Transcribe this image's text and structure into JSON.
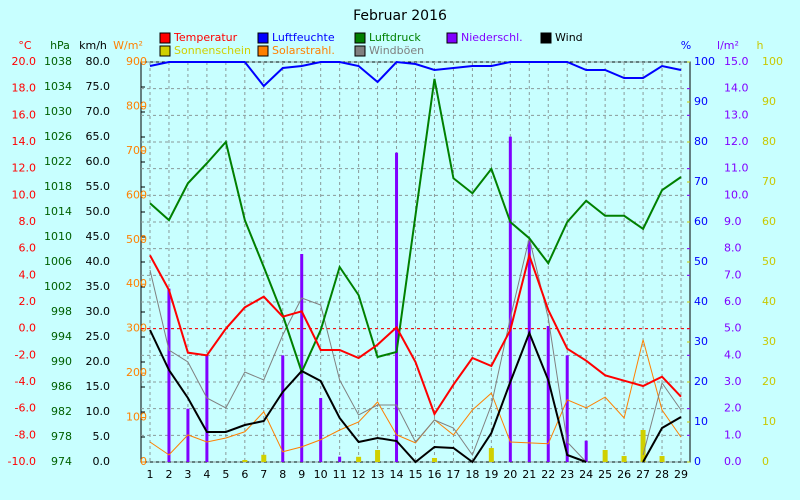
{
  "chart_data": {
    "type": "line",
    "title": "Februar 2016",
    "x": [
      1,
      2,
      3,
      4,
      5,
      6,
      7,
      8,
      9,
      10,
      11,
      12,
      13,
      14,
      15,
      16,
      17,
      18,
      19,
      20,
      21,
      22,
      23,
      24,
      25,
      26,
      27,
      28,
      29
    ],
    "xlim": [
      1,
      29
    ],
    "grid": true,
    "axes": [
      {
        "label": "°C",
        "side": "left",
        "color": "#ff0000",
        "lim": [
          -10,
          20
        ],
        "ticks": [
          {
            "value": -10,
            "label": "-10.0"
          },
          {
            "value": -8,
            "label": "-8.0"
          },
          {
            "value": -6,
            "label": "-6.0"
          },
          {
            "value": -4,
            "label": "-4.0"
          },
          {
            "value": -2,
            "label": "-2.0"
          },
          {
            "value": 0,
            "label": "0.0"
          },
          {
            "value": 2,
            "label": "2.0"
          },
          {
            "value": 4,
            "label": "4.0"
          },
          {
            "value": 6,
            "label": "6.0"
          },
          {
            "value": 8,
            "label": "8.0"
          },
          {
            "value": 10,
            "label": "10.0"
          },
          {
            "value": 12,
            "label": "12.0"
          },
          {
            "value": 14,
            "label": "14.0"
          },
          {
            "value": 16,
            "label": "16.0"
          },
          {
            "value": 18,
            "label": "18.0"
          },
          {
            "value": 20,
            "label": "20.0"
          }
        ]
      },
      {
        "label": "hPa",
        "side": "left",
        "color": "#006000",
        "lim": [
          974,
          1038
        ],
        "ticks": [
          974,
          978,
          982,
          986,
          990,
          994,
          998,
          1002,
          1006,
          1010,
          1014,
          1018,
          1022,
          1026,
          1030,
          1034,
          1038
        ]
      },
      {
        "label": "km/h",
        "side": "left",
        "color": "#000000",
        "lim": [
          0,
          80
        ],
        "ticks": [
          {
            "value": 0,
            "label": "0.0"
          },
          {
            "value": 5,
            "label": "5.0"
          },
          {
            "value": 10,
            "label": "10.0"
          },
          {
            "value": 15,
            "label": "15.0"
          },
          {
            "value": 20,
            "label": "20.0"
          },
          {
            "value": 25,
            "label": "25.0"
          },
          {
            "value": 30,
            "label": "30.0"
          },
          {
            "value": 35,
            "label": "35.0"
          },
          {
            "value": 40,
            "label": "40.0"
          },
          {
            "value": 45,
            "label": "45.0"
          },
          {
            "value": 50,
            "label": "50.0"
          },
          {
            "value": 55,
            "label": "55.0"
          },
          {
            "value": 60,
            "label": "60.0"
          },
          {
            "value": 65,
            "label": "65.0"
          },
          {
            "value": 70,
            "label": "70.0"
          },
          {
            "value": 75,
            "label": "75.0"
          },
          {
            "value": 80,
            "label": "80.0"
          }
        ]
      },
      {
        "label": "W/m²",
        "side": "left",
        "color": "#ff8000",
        "lim": [
          0,
          900
        ],
        "ticks": [
          0,
          100,
          200,
          300,
          400,
          500,
          600,
          700,
          800,
          900
        ]
      },
      {
        "label": "%",
        "side": "right",
        "color": "#0000ff",
        "lim": [
          0,
          100
        ],
        "ticks": [
          0,
          10,
          20,
          30,
          40,
          50,
          60,
          70,
          80,
          90,
          100
        ]
      },
      {
        "label": "l/m²",
        "side": "right",
        "color": "#8000ff",
        "lim": [
          0,
          15
        ],
        "ticks": [
          {
            "value": 0,
            "label": "0.0"
          },
          {
            "value": 1,
            "label": "1.0"
          },
          {
            "value": 2,
            "label": "2.0"
          },
          {
            "value": 3,
            "label": "3.0"
          },
          {
            "value": 4,
            "label": "4.0"
          },
          {
            "value": 5,
            "label": "5.0"
          },
          {
            "value": 6,
            "label": "6.0"
          },
          {
            "value": 7,
            "label": "7.0"
          },
          {
            "value": 8,
            "label": "8.0"
          },
          {
            "value": 9,
            "label": "9.0"
          },
          {
            "value": 10,
            "label": "10.0"
          },
          {
            "value": 11,
            "label": "11.0"
          },
          {
            "value": 12,
            "label": "12.0"
          },
          {
            "value": 13,
            "label": "13.0"
          },
          {
            "value": 14,
            "label": "14.0"
          },
          {
            "value": 15,
            "label": "15.0"
          }
        ]
      },
      {
        "label": "h",
        "side": "right",
        "color": "#c8c800",
        "lim": [
          0,
          100
        ],
        "ticks": [
          0,
          10,
          20,
          30,
          40,
          50,
          60,
          70,
          80,
          90,
          100
        ]
      }
    ],
    "reference_line": {
      "axis": "°C",
      "value": 0,
      "color": "#ff0000"
    },
    "series": [
      {
        "name": "Niederschl.",
        "kind": "bar",
        "axis": "l/m²",
        "color": "#8000ff",
        "values": [
          0,
          6.5,
          2.0,
          4.0,
          0,
          0,
          0,
          4.0,
          7.8,
          2.4,
          0.2,
          0,
          0.4,
          11.6,
          0,
          0,
          0,
          0,
          0,
          12.2,
          8.3,
          5.1,
          4.0,
          0.8,
          0.2,
          0,
          0,
          0,
          0
        ]
      },
      {
        "name": "Sonnenschein",
        "kind": "bar",
        "axis": "h",
        "color": "#d0d000",
        "values": [
          0,
          0,
          0,
          0,
          0,
          0.5,
          1.8,
          0,
          0,
          0,
          0,
          1.3,
          3,
          0,
          0,
          1,
          0,
          0,
          3.5,
          0,
          0,
          0,
          0,
          0,
          3,
          1.5,
          8,
          1.5,
          0
        ]
      },
      {
        "name": "Solarstrahl.",
        "kind": "line",
        "axis": "W/m²",
        "color": "#ff8000",
        "width": 1,
        "values": [
          45,
          16,
          61,
          45,
          54,
          68,
          113,
          23,
          34,
          50,
          72,
          90,
          135,
          61,
          43,
          95,
          61,
          117,
          155,
          45,
          43,
          41,
          140,
          122,
          146,
          99,
          275,
          117,
          56
        ]
      },
      {
        "name": "Windböen",
        "kind": "line",
        "axis": "km/h",
        "color": "#808080",
        "width": 1,
        "values": [
          38.4,
          22.4,
          20,
          12.8,
          10.8,
          18,
          16.4,
          25.4,
          32.8,
          31.4,
          16.4,
          9.4,
          11.4,
          11.4,
          4,
          8.4,
          6.8,
          1.4,
          11.4,
          28.8,
          44.8,
          28.8,
          4,
          0,
          null,
          null,
          1.4,
          15.8,
          10.4
        ]
      },
      {
        "name": "Luftfeuchte",
        "kind": "line",
        "axis": "%",
        "color": "#0000ff",
        "width": 2,
        "values": [
          99,
          100,
          100,
          100,
          100,
          100,
          94,
          98.5,
          99,
          100,
          100,
          99,
          95,
          100,
          99.5,
          98,
          98.5,
          99,
          99,
          100,
          100,
          100,
          100,
          98,
          98,
          96,
          96,
          99,
          98
        ]
      },
      {
        "name": "Luftdruck",
        "kind": "line",
        "axis": "hPa",
        "color": "#008000",
        "width": 2,
        "values": [
          1015.4,
          1012.7,
          1018.6,
          1021.8,
          1025.2,
          1012.7,
          1005.2,
          997.5,
          988.4,
          995.1,
          1005.2,
          1000.7,
          990.8,
          991.6,
          1013.5,
          1035.3,
          1019.4,
          1017.0,
          1020.9,
          1012.4,
          1009.8,
          1005.8,
          1012.4,
          1015.8,
          1013.4,
          1013.4,
          1011.3,
          1017.5,
          1019.6
        ]
      },
      {
        "name": "Temperatur",
        "kind": "line",
        "axis": "°C",
        "color": "#ff0000",
        "width": 2,
        "values": [
          5.5,
          2.9,
          -1.8,
          -2.0,
          0.0,
          1.6,
          2.4,
          0.9,
          1.3,
          -1.6,
          -1.6,
          -2.2,
          -1.2,
          0.1,
          -2.5,
          -6.4,
          -4.2,
          -2.2,
          -2.8,
          -0.1,
          5.5,
          1.4,
          -1.5,
          -2.4,
          -3.5,
          -3.9,
          -4.3,
          -3.6,
          -5.1
        ]
      },
      {
        "name": "Wind",
        "kind": "line",
        "axis": "km/h",
        "color": "#000000",
        "width": 2,
        "values": [
          26.4,
          18.4,
          12.8,
          6.0,
          6.0,
          7.4,
          8.2,
          14,
          18.2,
          16.2,
          8.8,
          4.0,
          4.8,
          4.2,
          0,
          3.0,
          2.8,
          0,
          5.8,
          16,
          25.8,
          16.4,
          1.4,
          0,
          null,
          null,
          0,
          6.8,
          9
        ]
      }
    ],
    "legend_order": [
      6,
      4,
      5,
      0,
      7,
      1,
      2,
      3
    ]
  }
}
